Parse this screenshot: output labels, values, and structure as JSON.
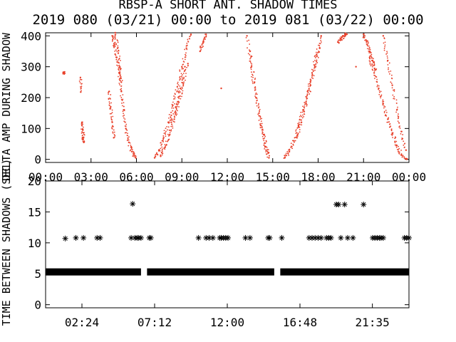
{
  "title": "RBSP-A SHORT ANT. SHADOW TIMES",
  "subtitle": "2019 080 (03/21) 00:00 to 2019 081 (03/22) 00:00",
  "colors": {
    "top_points": "#e8402a",
    "bottom_points": "#000000",
    "axes": "#000000"
  },
  "chart_data": [
    {
      "type": "scatter",
      "ylabel": "DELTA AMP DURING SHADOW",
      "xlabel": "",
      "xlim": [
        0,
        24
      ],
      "ylim": [
        -10,
        410
      ],
      "x_tick_labels": [
        "00:00",
        "03:00",
        "06:00",
        "09:00",
        "12:00",
        "15:00",
        "18:00",
        "21:00",
        "00:00"
      ],
      "x_ticks": [
        0,
        3,
        6,
        9,
        12,
        15,
        18,
        21,
        24
      ],
      "y_ticks": [
        0,
        100,
        200,
        300,
        400
      ],
      "series": [
        {
          "color": "#e8402a",
          "segments": [
            {
              "x": [
                1.2,
                1.22
              ],
              "y": [
                280,
                282
              ]
            },
            {
              "x": [
                2.3,
                2.32
              ],
              "y": [
                265,
                218
              ]
            },
            {
              "x": [
                2.4,
                2.45,
                2.5,
                2.52
              ],
              "y": [
                120,
                95,
                70,
                55
              ]
            },
            {
              "x": [
                4.4,
                4.55,
                4.7,
                4.85,
                5.0,
                5.15,
                5.3,
                5.5,
                5.7,
                5.95
              ],
              "y": [
                400,
                370,
                330,
                280,
                220,
                160,
                100,
                55,
                25,
                5
              ]
            },
            {
              "x": [
                4.2,
                4.3,
                4.4,
                4.5
              ],
              "y": [
                220,
                170,
                120,
                70
              ]
            },
            {
              "x": [
                4.6,
                4.75,
                4.9,
                5.0
              ],
              "y": [
                410,
                360,
                300,
                250
              ]
            },
            {
              "x": [
                7.2,
                7.5,
                7.8,
                8.1,
                8.4,
                8.7,
                9.0,
                9.3,
                9.6
              ],
              "y": [
                5,
                30,
                70,
                120,
                175,
                235,
                300,
                360,
                405
              ]
            },
            {
              "x": [
                7.6,
                7.9,
                8.2,
                8.5,
                8.8,
                9.1,
                9.4
              ],
              "y": [
                10,
                40,
                80,
                130,
                185,
                245,
                310
              ]
            },
            {
              "x": [
                8.3,
                8.6,
                8.9,
                9.2
              ],
              "y": [
                120,
                170,
                230,
                300
              ]
            },
            {
              "x": [
                10.2,
                10.4,
                10.6
              ],
              "y": [
                350,
                380,
                405
              ]
            },
            {
              "x": [
                11.6
              ],
              "y": [
                230
              ]
            },
            {
              "x": [
                13.3,
                13.6,
                13.9,
                14.2,
                14.5,
                14.75
              ],
              "y": [
                400,
                300,
                200,
                110,
                40,
                5
              ]
            },
            {
              "x": [
                13.5,
                13.8,
                14.1,
                14.4,
                14.7
              ],
              "y": [
                350,
                250,
                150,
                80,
                20
              ]
            },
            {
              "x": [
                15.8,
                16.1,
                16.4,
                16.7,
                17.0,
                17.3,
                17.6,
                17.9,
                18.2
              ],
              "y": [
                5,
                25,
                60,
                110,
                160,
                220,
                280,
                340,
                400
              ]
            },
            {
              "x": [
                16.6,
                16.9,
                17.2,
                17.5,
                17.8,
                18.1
              ],
              "y": [
                70,
                120,
                180,
                240,
                300,
                360
              ]
            },
            {
              "x": [
                19.3,
                19.5,
                19.7,
                19.9
              ],
              "y": [
                380,
                390,
                400,
                405
              ]
            },
            {
              "x": [
                20.5
              ],
              "y": [
                300
              ]
            },
            {
              "x": [
                21.0,
                21.2,
                21.4,
                21.6,
                21.8
              ],
              "y": [
                405,
                380,
                350,
                320,
                290
              ]
            },
            {
              "x": [
                21.4,
                21.7,
                22.0,
                22.3,
                22.6,
                22.9,
                23.2,
                23.5,
                23.85
              ],
              "y": [
                330,
                280,
                230,
                180,
                130,
                85,
                45,
                15,
                0
              ]
            },
            {
              "x": [
                22.3,
                22.6,
                22.9,
                23.2,
                23.5,
                23.8
              ],
              "y": [
                400,
                320,
                240,
                160,
                90,
                30
              ]
            }
          ]
        }
      ]
    },
    {
      "type": "scatter",
      "ylabel": "TIME BETWEEN SHADOWS (SEC)",
      "xlabel": "",
      "xlim": [
        0,
        24
      ],
      "ylim": [
        -0.5,
        20
      ],
      "x_tick_labels": [
        "02:24",
        "07:12",
        "12:00",
        "16:48",
        "21:35"
      ],
      "x_ticks": [
        2.4,
        7.2,
        12.0,
        16.8,
        21.583
      ],
      "y_ticks": [
        0,
        5,
        10,
        15,
        20
      ],
      "baseline": {
        "y": 5.3,
        "segments": [
          [
            0.0,
            6.3
          ],
          [
            6.7,
            15.1
          ],
          [
            15.5,
            24.0
          ]
        ]
      },
      "series": [
        {
          "color": "#000000",
          "x": [
            1.3,
            2.0,
            2.5,
            3.4,
            3.6,
            5.65,
            5.75,
            5.9,
            6.05,
            6.15,
            6.3,
            6.85,
            6.95,
            10.1,
            10.6,
            10.8,
            11.05,
            11.5,
            11.6,
            11.75,
            11.9,
            12.05,
            13.2,
            13.5,
            14.7,
            14.8,
            15.6,
            17.4,
            17.6,
            17.8,
            18.0,
            18.2,
            18.55,
            18.7,
            18.85,
            19.2,
            19.35,
            19.5,
            19.75,
            19.95,
            20.3,
            21.0,
            21.6,
            21.75,
            21.9,
            22.05,
            22.15,
            22.3,
            23.7,
            23.85,
            24.0
          ],
          "y": [
            10.7,
            10.8,
            10.8,
            10.8,
            10.8,
            10.8,
            16.3,
            10.8,
            10.8,
            10.8,
            10.8,
            10.8,
            10.8,
            10.8,
            10.8,
            10.8,
            10.8,
            10.8,
            10.8,
            10.8,
            10.8,
            10.8,
            10.8,
            10.8,
            10.8,
            10.8,
            10.8,
            10.8,
            10.8,
            10.8,
            10.8,
            10.8,
            10.8,
            10.8,
            10.8,
            16.2,
            16.2,
            10.8,
            16.2,
            10.8,
            10.8,
            16.2,
            10.8,
            10.8,
            10.8,
            10.8,
            10.8,
            10.8,
            10.8,
            10.8,
            10.8
          ]
        }
      ]
    }
  ]
}
